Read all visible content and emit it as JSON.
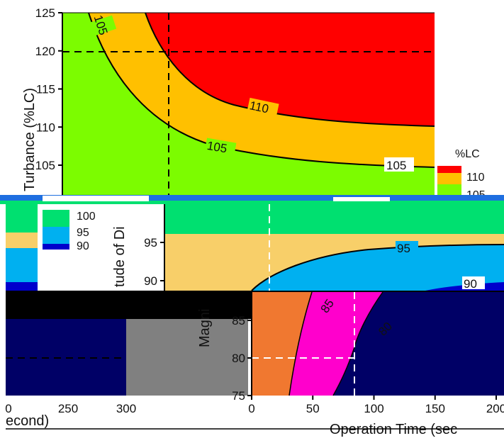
{
  "chart_data": [
    {
      "type": "contour",
      "ylabel": "Turbance (%LC)",
      "y_ticks": [
        105,
        110,
        115,
        120,
        125
      ],
      "ylim": [
        102,
        125
      ],
      "xlim": [
        0,
        200
      ],
      "contour_labels": [
        "110",
        "105",
        "105",
        "105"
      ],
      "legend": {
        "title": "%LC",
        "levels": [
          "110",
          "105"
        ],
        "colors": [
          "#ff0000",
          "#ffc000",
          "#7cfc00"
        ]
      },
      "reference_lines": {
        "y": 120,
        "x": 56
      }
    },
    {
      "type": "contour",
      "ylabel": "tude of Di",
      "y_ticks": [
        90,
        95
      ],
      "contour_labels": [
        "95",
        "90"
      ],
      "legend": {
        "levels": [
          "100",
          "95",
          "90"
        ],
        "colors": [
          "#00e070",
          "#00b0f0",
          "#0000cc"
        ]
      },
      "colors": {
        "fill_top": "#00e070",
        "fill_mid": "#f8cf69",
        "fill_low": "#00b0f0",
        "fill_bottom": "#0000cc"
      }
    },
    {
      "type": "contour",
      "ylabel": "Magni",
      "xlabel": "Operation Time (sec",
      "y_ticks": [
        75,
        80,
        85
      ],
      "x_ticks": [
        "0",
        "50",
        "100",
        "150",
        "200"
      ],
      "contour_labels": [
        "85",
        "80"
      ],
      "colors": {
        "fill_left": "#f07830",
        "fill_mid": "#ff00cc",
        "fill_right": "#000066"
      }
    },
    {
      "type": "contour",
      "xlabel": "econd)",
      "x_ticks": [
        "0",
        "250",
        "300"
      ],
      "colors": {
        "fill": "#000066",
        "gray": "#808080"
      }
    }
  ]
}
